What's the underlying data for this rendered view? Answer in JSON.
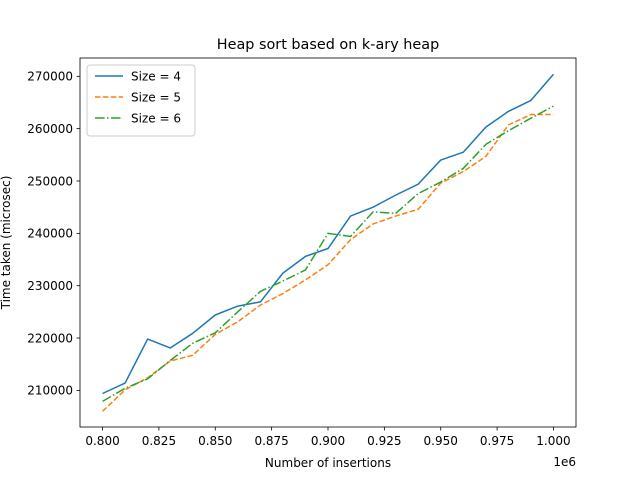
{
  "chart_data": {
    "type": "line",
    "title": "Heap sort based on k-ary heap",
    "xlabel": "Number of insertions",
    "ylabel": "Time taken (microsec)",
    "x_offset_text": "1e6",
    "xlim": [
      0.79,
      1.01
    ],
    "ylim": [
      203000,
      273500
    ],
    "xticks": [
      0.8,
      0.825,
      0.85,
      0.875,
      0.9,
      0.925,
      0.95,
      0.975,
      1.0
    ],
    "xtick_labels": [
      "0.800",
      "0.825",
      "0.850",
      "0.875",
      "0.900",
      "0.925",
      "0.950",
      "0.975",
      "1.000"
    ],
    "yticks": [
      210000,
      220000,
      230000,
      240000,
      250000,
      260000,
      270000
    ],
    "ytick_labels": [
      "210000",
      "220000",
      "230000",
      "240000",
      "250000",
      "260000",
      "270000"
    ],
    "grid": false,
    "legend_position": "top-left",
    "x": [
      0.8,
      0.81,
      0.82,
      0.83,
      0.84,
      0.85,
      0.86,
      0.87,
      0.88,
      0.89,
      0.9,
      0.91,
      0.92,
      0.93,
      0.94,
      0.95,
      0.96,
      0.97,
      0.98,
      0.99,
      1.0
    ],
    "series": [
      {
        "name": "Size = 4",
        "color": "#1f77b4",
        "dash": "solid",
        "values": [
          209400,
          211400,
          219800,
          218100,
          220900,
          224400,
          226100,
          226900,
          232400,
          235600,
          237100,
          243300,
          245000,
          247300,
          249400,
          254000,
          255500,
          260300,
          263300,
          265400,
          270400
        ]
      },
      {
        "name": "Size = 5",
        "color": "#ff7f0e",
        "dash": "dashed",
        "values": [
          206000,
          210100,
          212400,
          215600,
          216700,
          220700,
          223100,
          226300,
          228500,
          231100,
          234000,
          238800,
          241800,
          243300,
          244600,
          249600,
          251800,
          254700,
          260700,
          262700,
          262700
        ]
      },
      {
        "name": "Size = 6",
        "color": "#2ca02c",
        "dash": "dashdot",
        "values": [
          207900,
          210400,
          212200,
          215700,
          219000,
          221000,
          225000,
          228900,
          230900,
          233000,
          240000,
          239400,
          244100,
          243800,
          247600,
          249800,
          252400,
          257000,
          259600,
          262000,
          264300
        ]
      }
    ]
  }
}
